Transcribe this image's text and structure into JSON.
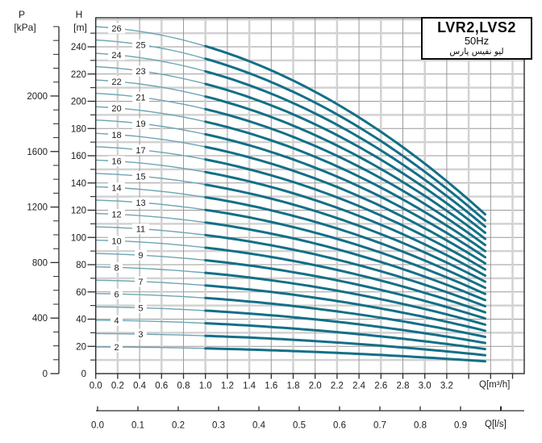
{
  "title_box": {
    "model": "LVR2,LVS2",
    "frequency": "50Hz",
    "brand": "لیو نفیس پارس"
  },
  "axes": {
    "pressure": {
      "name": "P",
      "unit": "[kPa]",
      "tick_labels": [
        0,
        400,
        800,
        1200,
        1600,
        2000
      ],
      "minor_step_kpa": 100,
      "minor_max_kpa": 2500,
      "kpa_per_m": 9.81
    },
    "head": {
      "name": "H",
      "unit": "[m]",
      "tick_labels": [
        0,
        20,
        40,
        60,
        80,
        100,
        120,
        140,
        160,
        180,
        200,
        220,
        240
      ],
      "minor_step_m": 10,
      "minor_max_m": 250
    },
    "flow_m3h": {
      "unit_label": "Q[m³/h]",
      "tick_labels": [
        "0.0",
        "0.2",
        "0.4",
        "0.6",
        "0.8",
        "1.0",
        "1.2",
        "1.4",
        "1.6",
        "1.8",
        "2.0",
        "2.2",
        "2.4",
        "2.6",
        "2.8",
        "3.0",
        "3.2"
      ],
      "unlabeled_ticks": [
        3.4,
        3.6,
        3.8
      ],
      "tick_step": 0.2
    },
    "flow_ls": {
      "unit_label": "Q[l/s]",
      "tick_labels": [
        "0.0",
        "0.1",
        "0.2",
        "0.3",
        "0.4",
        "0.5",
        "0.6",
        "0.7",
        "0.8",
        "0.9"
      ],
      "unlabeled_ticks": [
        1.0
      ],
      "tick_step": 0.1
    }
  },
  "chart_data": {
    "type": "line",
    "title": "LVR2,LVS2 50Hz multistage pump performance curves",
    "xlabel": "Q[m³/h]",
    "ylabel": "H [m]",
    "xlim": [
      0,
      3.9
    ],
    "ylim": [
      0,
      261
    ],
    "grid": true,
    "q_range_m3h": [
      0,
      3.57
    ],
    "duty_thick_from_q_m3h": 1.0,
    "per_stage_head_model_m": {
      "shutoff": 9.8,
      "linear_coef": 0.18,
      "quad_coef": 0.37
    },
    "series": [
      {
        "stage": 2,
        "label": "2",
        "h0_m": 19.6,
        "h_end_m": 8.9
      },
      {
        "stage": 3,
        "label": "3",
        "h0_m": 29.4,
        "h_end_m": 13.3
      },
      {
        "stage": 4,
        "label": "4",
        "h0_m": 39.2,
        "h_end_m": 17.8
      },
      {
        "stage": 5,
        "label": "5",
        "h0_m": 49.0,
        "h_end_m": 22.2
      },
      {
        "stage": 6,
        "label": "6",
        "h0_m": 58.8,
        "h_end_m": 26.6
      },
      {
        "stage": 7,
        "label": "7",
        "h0_m": 68.6,
        "h_end_m": 31.1
      },
      {
        "stage": 8,
        "label": "8",
        "h0_m": 78.4,
        "h_end_m": 35.5
      },
      {
        "stage": 9,
        "label": "9",
        "h0_m": 88.2,
        "h_end_m": 40.0
      },
      {
        "stage": 10,
        "label": "10",
        "h0_m": 98.0,
        "h_end_m": 44.4
      },
      {
        "stage": 11,
        "label": "11",
        "h0_m": 107.8,
        "h_end_m": 48.8
      },
      {
        "stage": 12,
        "label": "12",
        "h0_m": 117.6,
        "h_end_m": 53.3
      },
      {
        "stage": 13,
        "label": "13",
        "h0_m": 127.4,
        "h_end_m": 57.7
      },
      {
        "stage": 14,
        "label": "14",
        "h0_m": 137.2,
        "h_end_m": 62.2
      },
      {
        "stage": 15,
        "label": "15",
        "h0_m": 147.0,
        "h_end_m": 66.6
      },
      {
        "stage": 16,
        "label": "16",
        "h0_m": 156.8,
        "h_end_m": 71.0
      },
      {
        "stage": 17,
        "label": "17",
        "h0_m": 166.6,
        "h_end_m": 75.5
      },
      {
        "stage": 18,
        "label": "18",
        "h0_m": 176.4,
        "h_end_m": 79.9
      },
      {
        "stage": 19,
        "label": "19",
        "h0_m": 186.2,
        "h_end_m": 84.4
      },
      {
        "stage": 20,
        "label": "20",
        "h0_m": 196.0,
        "h_end_m": 88.8
      },
      {
        "stage": 21,
        "label": "21",
        "h0_m": 205.8,
        "h_end_m": 93.2
      },
      {
        "stage": 22,
        "label": "22",
        "h0_m": 215.6,
        "h_end_m": 97.7
      },
      {
        "stage": 23,
        "label": "23",
        "h0_m": 225.4,
        "h_end_m": 102.1
      },
      {
        "stage": 24,
        "label": "24",
        "h0_m": 235.2,
        "h_end_m": 106.6
      },
      {
        "stage": 25,
        "label": "25",
        "h0_m": 245.0,
        "h_end_m": 111.0
      },
      {
        "stage": 26,
        "label": "26",
        "h0_m": 254.8,
        "h_end_m": 115.4
      }
    ]
  },
  "colors": {
    "curve": "#136f87",
    "curve_thin": "#6fa5b3",
    "grid_light": "#d2d2d2",
    "grid_dark": "#9a9a9a",
    "axis": "#2b2b2b",
    "text": "#1c1c1c"
  }
}
